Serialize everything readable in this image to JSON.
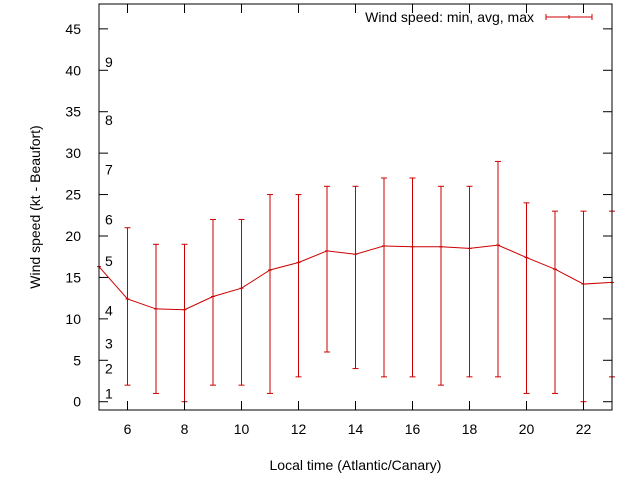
{
  "chart_data": {
    "type": "line",
    "title": "",
    "xlabel": "Local time (Atlantic/Canary)",
    "ylabel": "Wind speed (kt - Beaufort)",
    "xlim": [
      5,
      23
    ],
    "ylim": [
      -1,
      48
    ],
    "x_ticks": [
      6,
      8,
      10,
      12,
      14,
      16,
      18,
      20,
      22
    ],
    "y_ticks": [
      0,
      5,
      10,
      15,
      20,
      25,
      30,
      35,
      40,
      45
    ],
    "beaufort_scale": [
      {
        "label": "1",
        "kt": 1
      },
      {
        "label": "2",
        "kt": 4
      },
      {
        "label": "3",
        "kt": 7
      },
      {
        "label": "4",
        "kt": 11
      },
      {
        "label": "5",
        "kt": 17
      },
      {
        "label": "6",
        "kt": 22
      },
      {
        "label": "7",
        "kt": 28
      },
      {
        "label": "8",
        "kt": 34
      },
      {
        "label": "9",
        "kt": 41
      }
    ],
    "legend": {
      "label": "Wind speed: min, avg, max",
      "position": "top-right"
    },
    "grid": false,
    "color": "#cc0000",
    "series": [
      {
        "name": "Wind speed: min, avg, max",
        "x": [
          5,
          6,
          7,
          8,
          9,
          10,
          11,
          12,
          13,
          14,
          15,
          16,
          17,
          18,
          19,
          20,
          21,
          22,
          23
        ],
        "avg": [
          16.3,
          12.4,
          11.2,
          11.1,
          12.7,
          13.7,
          15.9,
          16.8,
          18.2,
          17.8,
          18.8,
          18.7,
          18.7,
          18.5,
          18.9,
          17.4,
          16.0,
          14.2,
          14.4
        ],
        "min": [
          null,
          2,
          1,
          0,
          2,
          2,
          1,
          3,
          6,
          4,
          3,
          3,
          2,
          3,
          3,
          1,
          1,
          0,
          3
        ],
        "max": [
          null,
          21,
          19,
          19,
          22,
          22,
          25,
          25,
          26,
          26,
          27,
          27,
          26,
          26,
          29,
          24,
          23,
          23,
          23
        ]
      }
    ]
  }
}
